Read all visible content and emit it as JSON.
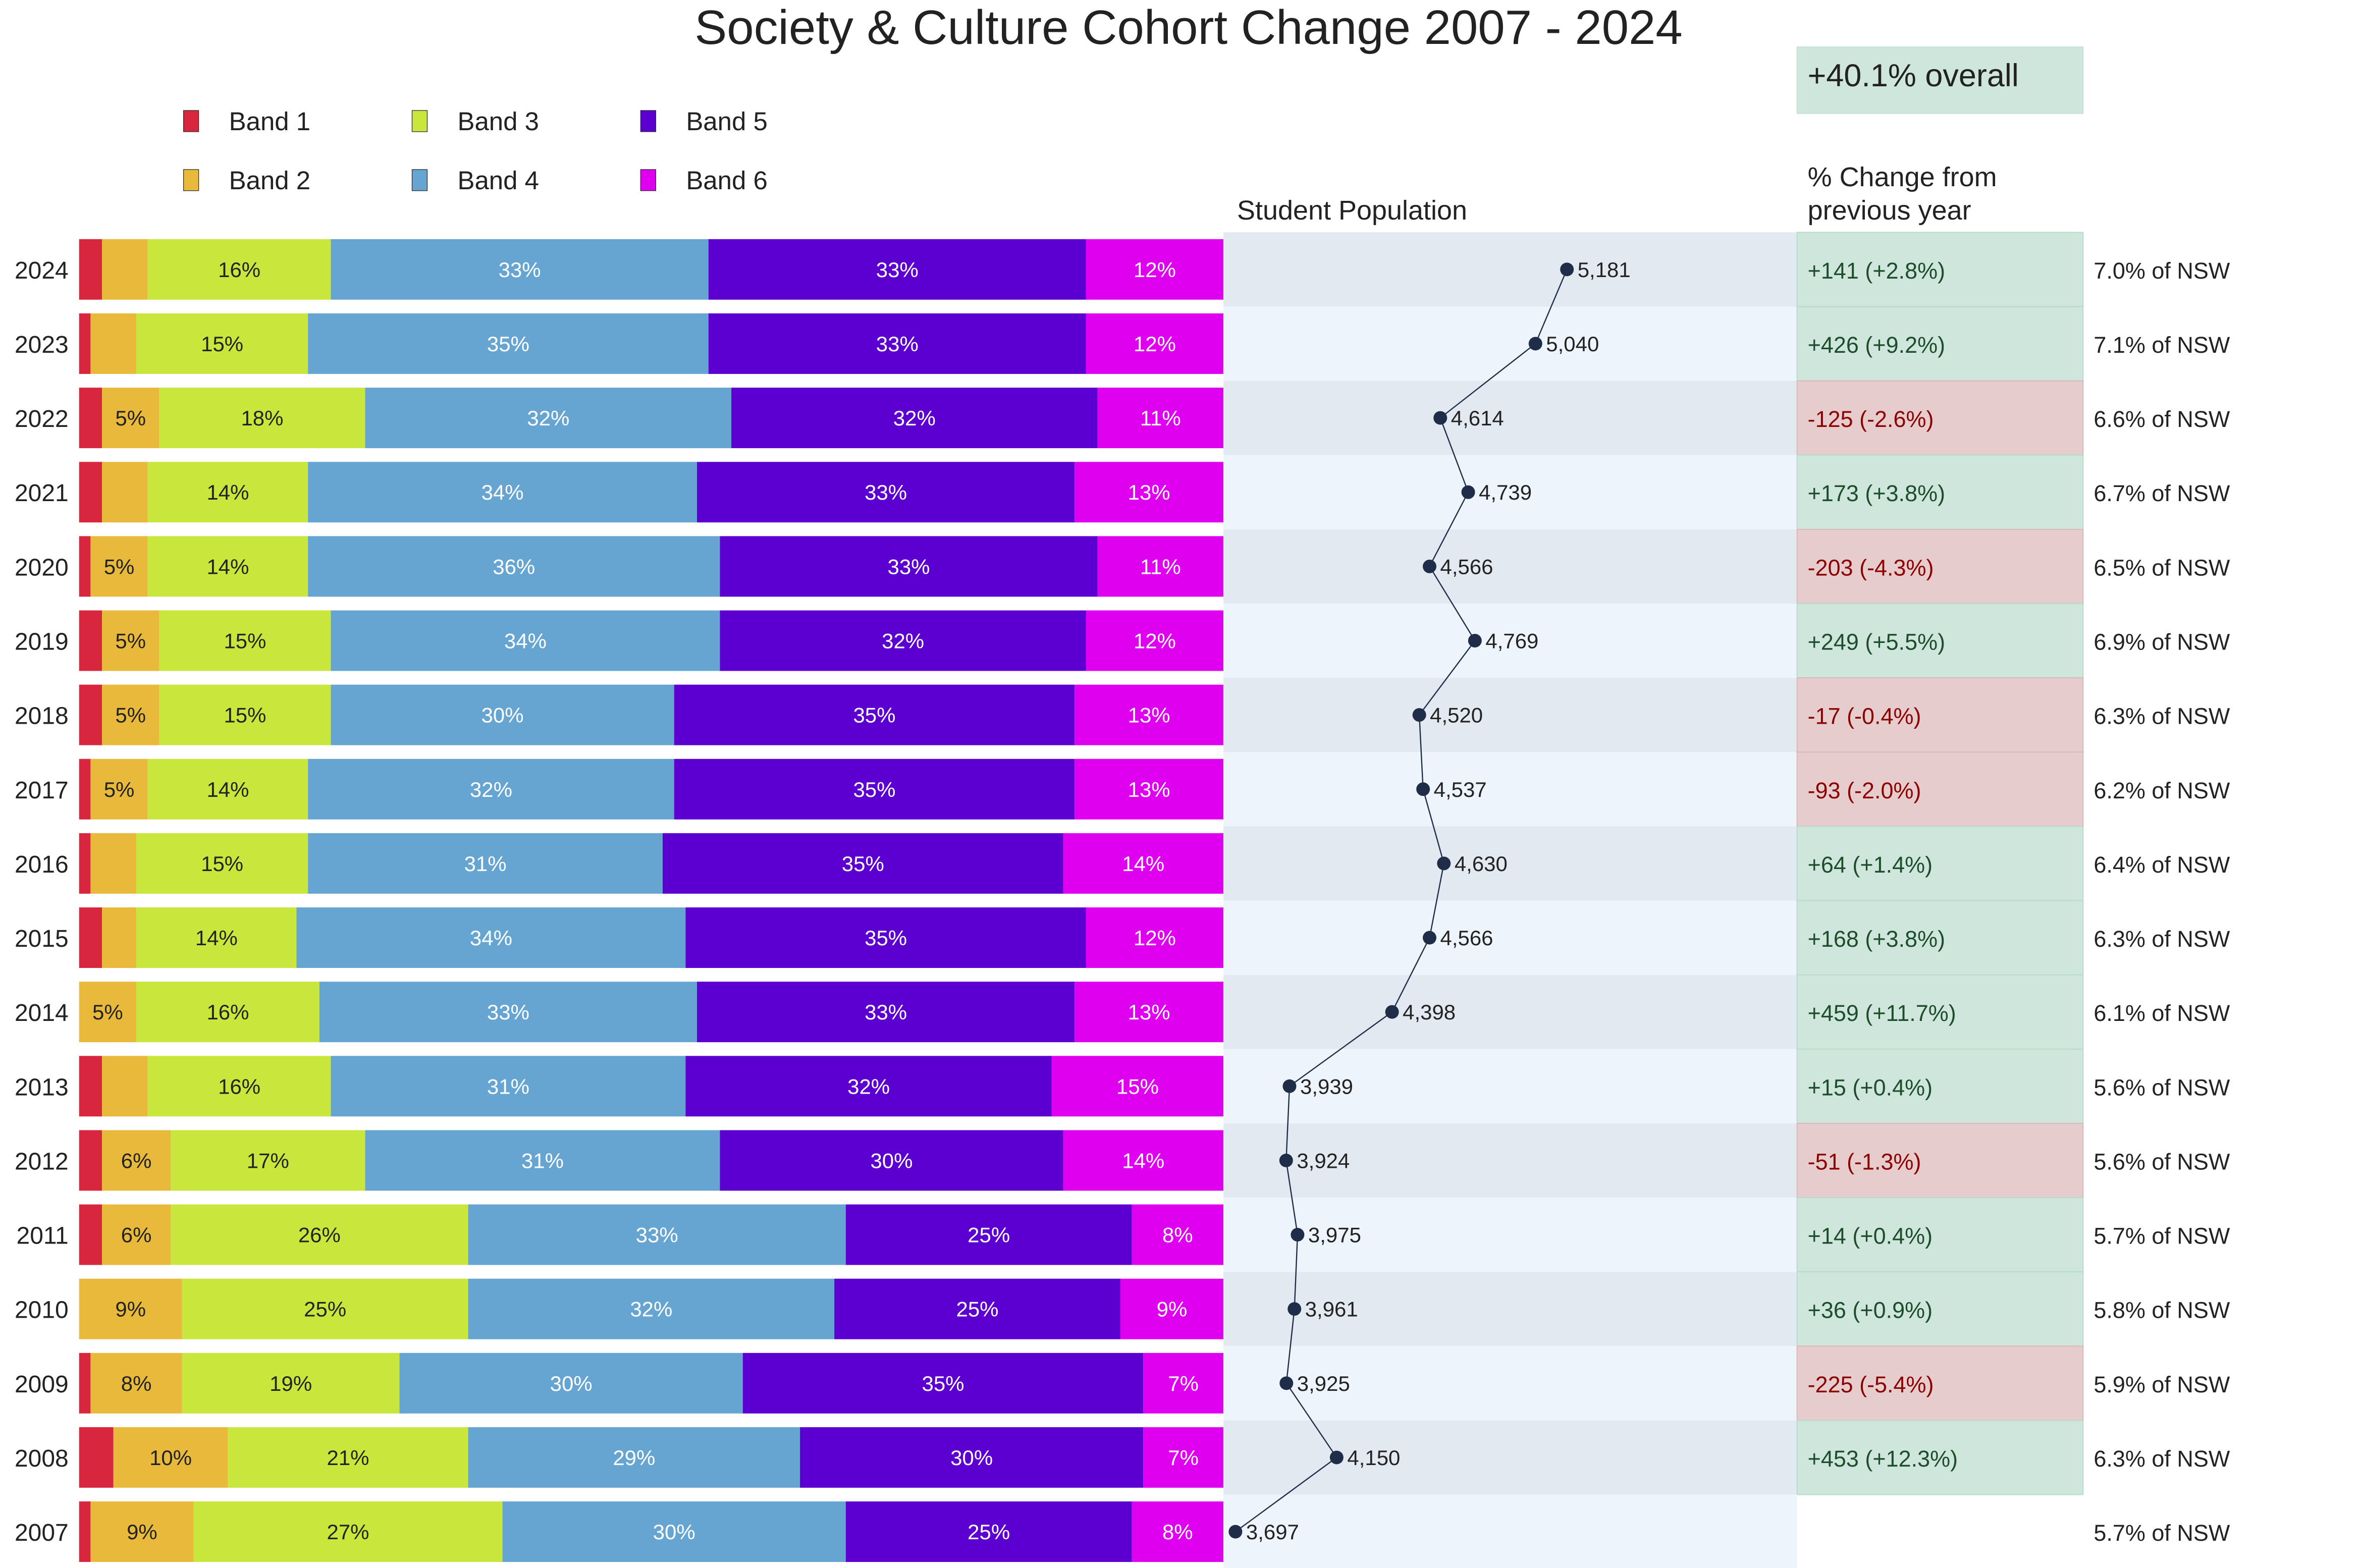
{
  "chart_data": {
    "type": "bar",
    "title": "Society & Culture Cohort Change 2007 - 2024",
    "overall_change": "+40.1% overall",
    "population_header": "Student Population",
    "change_header_line1": "% Change from",
    "change_header_line2": "previous year",
    "legend_placement": "top-left",
    "bands": [
      {
        "name": "Band 1",
        "color": "#d7263d"
      },
      {
        "name": "Band 2",
        "color": "#e8b93a"
      },
      {
        "name": "Band 3",
        "color": "#c9e63c"
      },
      {
        "name": "Band 4",
        "color": "#66a5d2"
      },
      {
        "name": "Band 5",
        "color": "#5b00d0"
      },
      {
        "name": "Band 6",
        "color": "#e000f0"
      }
    ],
    "population_xlim": [
      3643,
      6211
    ],
    "colors": {
      "positive_bg": "#cfe6dc",
      "negative_bg": "#e6cccc",
      "positive_text": "#1e4d2b",
      "negative_text": "#8b0000",
      "row_dark": "#e3e9f1",
      "row_light": "#eef4fc",
      "marker": "#1f2d48"
    },
    "rows": [
      {
        "year": "2024",
        "bands": [
          2,
          4,
          16,
          33,
          33,
          12
        ],
        "population": 5181,
        "population_label": "5,181",
        "change": "+141  (+2.8%)",
        "positive": true,
        "nsw": "7.0% of NSW"
      },
      {
        "year": "2023",
        "bands": [
          1,
          4,
          15,
          35,
          33,
          12
        ],
        "population": 5040,
        "population_label": "5,040",
        "change": "+426  (+9.2%)",
        "positive": true,
        "nsw": "7.1% of NSW"
      },
      {
        "year": "2022",
        "bands": [
          2,
          5,
          18,
          32,
          32,
          11
        ],
        "population": 4614,
        "population_label": "4,614",
        "change": "-125  (-2.6%)",
        "positive": false,
        "nsw": "6.6% of NSW"
      },
      {
        "year": "2021",
        "bands": [
          2,
          4,
          14,
          34,
          33,
          13
        ],
        "population": 4739,
        "population_label": "4,739",
        "change": "+173  (+3.8%)",
        "positive": true,
        "nsw": "6.7% of NSW"
      },
      {
        "year": "2020",
        "bands": [
          1,
          5,
          14,
          36,
          33,
          11
        ],
        "population": 4566,
        "population_label": "4,566",
        "change": "-203  (-4.3%)",
        "positive": false,
        "nsw": "6.5% of NSW"
      },
      {
        "year": "2019",
        "bands": [
          2,
          5,
          15,
          34,
          32,
          12
        ],
        "population": 4769,
        "population_label": "4,769",
        "change": "+249  (+5.5%)",
        "positive": true,
        "nsw": "6.9% of NSW"
      },
      {
        "year": "2018",
        "bands": [
          2,
          5,
          15,
          30,
          35,
          13
        ],
        "population": 4520,
        "population_label": "4,520",
        "change": "-17  (-0.4%)",
        "positive": false,
        "nsw": "6.3% of NSW"
      },
      {
        "year": "2017",
        "bands": [
          1,
          5,
          14,
          32,
          35,
          13
        ],
        "population": 4537,
        "population_label": "4,537",
        "change": "-93  (-2.0%)",
        "positive": false,
        "nsw": "6.2% of NSW"
      },
      {
        "year": "2016",
        "bands": [
          1,
          4,
          15,
          31,
          35,
          14
        ],
        "population": 4630,
        "population_label": "4,630",
        "change": "+64  (+1.4%)",
        "positive": true,
        "nsw": "6.4% of NSW"
      },
      {
        "year": "2015",
        "bands": [
          2,
          3,
          14,
          34,
          35,
          12
        ],
        "population": 4566,
        "population_label": "4,566",
        "change": "+168  (+3.8%)",
        "positive": true,
        "nsw": "6.3% of NSW"
      },
      {
        "year": "2014",
        "bands": [
          0,
          5,
          16,
          33,
          33,
          13
        ],
        "population": 4398,
        "population_label": "4,398",
        "change": "+459  (+11.7%)",
        "positive": true,
        "nsw": "6.1% of NSW"
      },
      {
        "year": "2013",
        "bands": [
          2,
          4,
          16,
          31,
          32,
          15
        ],
        "population": 3939,
        "population_label": "3,939",
        "change": "+15  (+0.4%)",
        "positive": true,
        "nsw": "5.6% of NSW"
      },
      {
        "year": "2012",
        "bands": [
          2,
          6,
          17,
          31,
          30,
          14
        ],
        "population": 3924,
        "population_label": "3,924",
        "change": "-51  (-1.3%)",
        "positive": false,
        "nsw": "5.6% of NSW"
      },
      {
        "year": "2011",
        "bands": [
          2,
          6,
          26,
          33,
          25,
          8
        ],
        "population": 3975,
        "population_label": "3,975",
        "change": "+14  (+0.4%)",
        "positive": true,
        "nsw": "5.7% of NSW"
      },
      {
        "year": "2010",
        "bands": [
          0,
          9,
          25,
          32,
          25,
          9
        ],
        "population": 3961,
        "population_label": "3,961",
        "change": "+36  (+0.9%)",
        "positive": true,
        "nsw": "5.8% of NSW"
      },
      {
        "year": "2009",
        "bands": [
          1,
          8,
          19,
          30,
          35,
          7
        ],
        "population": 3925,
        "population_label": "3,925",
        "change": "-225  (-5.4%)",
        "positive": false,
        "nsw": "5.9% of NSW"
      },
      {
        "year": "2008",
        "bands": [
          3,
          10,
          21,
          29,
          30,
          7
        ],
        "population": 4150,
        "population_label": "4,150",
        "change": "+453  (+12.3%)",
        "positive": true,
        "nsw": "6.3% of NSW"
      },
      {
        "year": "2007",
        "bands": [
          1,
          9,
          27,
          30,
          25,
          8
        ],
        "population": 3697,
        "population_label": "3,697",
        "change": "",
        "positive": true,
        "nsw": "5.7% of NSW"
      }
    ]
  }
}
